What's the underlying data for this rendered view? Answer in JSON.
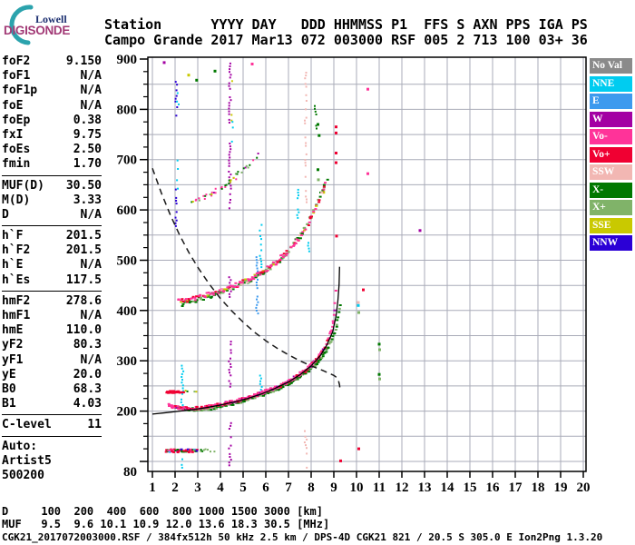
{
  "logo": {
    "top": "Lowell",
    "bottom": "DIGISONDE",
    "arc_color": "#2ba3ad"
  },
  "header": {
    "line1": "Station      YYYY DAY   DDD HHMMSS P1  FFS S AXN PPS IGA PS",
    "line2": "Campo Grande 2017 Mar13 072 003000 RSF 005 2 713 100 03+ 36"
  },
  "params": {
    "rows": [
      {
        "label": "foF2",
        "value": "9.150"
      },
      {
        "label": "foF1",
        "value": "N/A"
      },
      {
        "label": "foF1p",
        "value": "N/A"
      },
      {
        "label": "foE",
        "value": "N/A"
      },
      {
        "label": "foEp",
        "value": "0.38"
      },
      {
        "label": "fxI",
        "value": "9.75"
      },
      {
        "label": "foEs",
        "value": "2.50"
      },
      {
        "label": "fmin",
        "value": "1.70",
        "sep_after": true
      },
      {
        "label": "MUF(D)",
        "value": "30.50"
      },
      {
        "label": "M(D)",
        "value": "3.33"
      },
      {
        "label": "D",
        "value": "N/A",
        "sep_after": true
      },
      {
        "label": "h`F",
        "value": "201.5"
      },
      {
        "label": "h`F2",
        "value": "201.5"
      },
      {
        "label": "h`E",
        "value": "N/A"
      },
      {
        "label": "h`Es",
        "value": "117.5",
        "sep_after": true
      },
      {
        "label": "hmF2",
        "value": "278.6"
      },
      {
        "label": "hmF1",
        "value": "N/A"
      },
      {
        "label": "hmE",
        "value": "110.0"
      },
      {
        "label": "yF2",
        "value": "80.3"
      },
      {
        "label": "yF1",
        "value": "N/A"
      },
      {
        "label": "yE",
        "value": "20.0"
      },
      {
        "label": "B0",
        "value": "68.3"
      },
      {
        "label": "B1",
        "value": "4.03",
        "sep_after": true
      },
      {
        "label": "C-level",
        "value": "11",
        "sep_after": true
      },
      {
        "label": "Auto:",
        "value": ""
      },
      {
        "label": "Artist5",
        "value": ""
      },
      {
        "label": "500200",
        "value": ""
      }
    ]
  },
  "legend": [
    {
      "label": "No Val",
      "key": "NoVal"
    },
    {
      "label": "NNE",
      "key": "NNE"
    },
    {
      "label": "E",
      "key": "E"
    },
    {
      "label": "W",
      "key": "W"
    },
    {
      "label": "Vo-",
      "key": "Vo-"
    },
    {
      "label": "Vo+",
      "key": "Vo+"
    },
    {
      "label": "SSW",
      "key": "SSW"
    },
    {
      "label": "X-",
      "key": "X-"
    },
    {
      "label": "X+",
      "key": "X+"
    },
    {
      "label": "SSE",
      "key": "SSE"
    },
    {
      "label": "NNW",
      "key": "NNW"
    }
  ],
  "footer": {
    "d_label": "D",
    "d_values": [
      "100",
      "200",
      "400",
      "600",
      "800",
      "1000",
      "1500",
      "3000"
    ],
    "d_unit": "[km]",
    "muf_label": "MUF",
    "muf_values": [
      "9.5",
      "9.6",
      "10.1",
      "10.9",
      "12.0",
      "13.6",
      "18.3",
      "30.5"
    ],
    "muf_unit": "[MHz]",
    "status": "CGK21_2017072003000.RSF / 384fx512h 50 kHz 2.5 km / DPS-4D CGK21 821 / 20.5 S 305.0 E Ion2Png 1.3.20"
  },
  "chart_data": {
    "type": "scatter",
    "xlabel": "[MHz]",
    "ylabel": "[km]",
    "xlim": [
      1,
      20
    ],
    "ylim": [
      80,
      900
    ],
    "grid": true,
    "grid_color": "#A9ABB8",
    "palette": {
      "NoVal": "#8A8A8A",
      "NNE": "#00CCF0",
      "E": "#3D9AEE",
      "W": "#A300A3",
      "Vo-": "#FF3399",
      "Vo+": "#F00032",
      "SSW": "#F2B7B3",
      "X-": "#007800",
      "X+": "#80B369",
      "SSE": "#C9C900",
      "NNW": "#2B00D6"
    },
    "axes": {
      "x_ticks": [
        1,
        2,
        3,
        4,
        5,
        6,
        7,
        8,
        9,
        10,
        11,
        12,
        13,
        14,
        15,
        16,
        17,
        18,
        19,
        20
      ],
      "y_ticks": [
        {
          "v": 900,
          "label": "900"
        },
        {
          "v": 800,
          "label": "800"
        },
        {
          "v": 700,
          "label": "700"
        },
        {
          "v": 600,
          "label": "600"
        },
        {
          "v": 500,
          "label": "500"
        },
        {
          "v": 400,
          "label": "400"
        },
        {
          "v": 300,
          "label": "300"
        },
        {
          "v": 200,
          "label": "200"
        },
        {
          "v": 80,
          "label": "80"
        }
      ],
      "y_minor_step": 25,
      "y_grid_step": 50
    },
    "series": [
      {
        "name": "trace-f2-x-hop2",
        "df": 0.05,
        "dot": [
          3,
          2
        ],
        "jit": [
          1,
          2.4
        ],
        "prob": 0.85,
        "w": {
          "X-": 5,
          "X+": 3
        },
        "points": [
          [
            2.3,
            413
          ],
          [
            2.8,
            419
          ],
          [
            3.3,
            426
          ],
          [
            3.8,
            433
          ],
          [
            4.3,
            441
          ],
          [
            4.8,
            450
          ],
          [
            5.3,
            461
          ],
          [
            5.8,
            474
          ],
          [
            6.3,
            489
          ],
          [
            6.8,
            508
          ],
          [
            7.2,
            528
          ],
          [
            7.6,
            553
          ],
          [
            7.9,
            577
          ],
          [
            8.2,
            606
          ],
          [
            8.45,
            635
          ],
          [
            8.6,
            652
          ],
          [
            8.75,
            668
          ]
        ]
      },
      {
        "name": "trace-f2-o-hop2",
        "df": 0.045,
        "dot": [
          3,
          2
        ],
        "jit": [
          1,
          2.4
        ],
        "prob": 0.9,
        "w": {
          "Vo-": 6,
          "Vo+": 2,
          "SSW": 1,
          "SSE": 1
        },
        "points": [
          [
            2.15,
            418
          ],
          [
            2.6,
            422
          ],
          [
            3.1,
            427
          ],
          [
            3.6,
            433
          ],
          [
            4.1,
            440
          ],
          [
            4.6,
            448
          ],
          [
            5.1,
            458
          ],
          [
            5.6,
            470
          ],
          [
            6.1,
            484
          ],
          [
            6.5,
            497
          ],
          [
            6.9,
            514
          ],
          [
            7.3,
            534
          ],
          [
            7.7,
            559
          ],
          [
            8.0,
            584
          ],
          [
            8.3,
            614
          ],
          [
            8.5,
            638
          ],
          [
            8.65,
            655
          ]
        ]
      },
      {
        "name": "trace-f2-hop3",
        "df": 0.04,
        "dot": [
          2,
          2
        ],
        "jit": [
          1.2,
          2.6
        ],
        "prob": 0.6,
        "w": {
          "Vo-": 4,
          "X-": 3,
          "X+": 2,
          "SSE": 1,
          "W": 1
        },
        "points": [
          [
            2.7,
            612
          ],
          [
            3.1,
            621
          ],
          [
            3.5,
            630
          ],
          [
            3.9,
            641
          ],
          [
            4.3,
            653
          ],
          [
            4.7,
            667
          ],
          [
            5.1,
            683
          ],
          [
            5.4,
            697
          ],
          [
            5.65,
            710
          ]
        ]
      },
      {
        "name": "trace-f2-x-hop1",
        "df": 0.033,
        "dot": [
          3,
          2
        ],
        "jit": [
          0.8,
          1.6
        ],
        "w": {
          "X-": 5,
          "X+": 3
        },
        "points": [
          [
            2.05,
            207
          ],
          [
            2.5,
            204
          ],
          [
            3.0,
            203
          ],
          [
            3.5,
            205
          ],
          [
            4.0,
            209
          ],
          [
            4.5,
            214
          ],
          [
            5.0,
            220
          ],
          [
            5.5,
            227
          ],
          [
            6.0,
            235
          ],
          [
            6.5,
            244
          ],
          [
            7.0,
            255
          ],
          [
            7.4,
            265
          ],
          [
            7.8,
            278
          ],
          [
            8.2,
            293
          ],
          [
            8.5,
            309
          ],
          [
            8.8,
            330
          ],
          [
            9.0,
            350
          ],
          [
            9.1,
            365
          ],
          [
            9.2,
            385
          ],
          [
            9.3,
            408
          ],
          [
            9.34,
            420
          ]
        ]
      },
      {
        "name": "trace-f2-o-hop1",
        "df": 0.03,
        "dot": [
          3,
          2
        ],
        "jit": [
          0.8,
          1.7
        ],
        "w": {
          "Vo-": 7,
          "Vo+": 3,
          "W": 1
        },
        "points": [
          [
            1.72,
            212
          ],
          [
            1.85,
            209
          ],
          [
            2.0,
            208
          ],
          [
            2.3,
            206
          ],
          [
            2.7,
            205
          ],
          [
            3.0,
            206
          ],
          [
            3.5,
            209
          ],
          [
            4.0,
            213
          ],
          [
            4.5,
            218
          ],
          [
            5.0,
            224
          ],
          [
            5.5,
            231
          ],
          [
            6.0,
            239
          ],
          [
            6.5,
            248
          ],
          [
            7.0,
            259
          ],
          [
            7.4,
            270
          ],
          [
            7.8,
            283
          ],
          [
            8.1,
            296
          ],
          [
            8.4,
            312
          ],
          [
            8.6,
            327
          ],
          [
            8.8,
            348
          ],
          [
            8.95,
            372
          ],
          [
            9.03,
            395
          ],
          [
            9.08,
            420
          ],
          [
            9.1,
            442
          ],
          [
            9.11,
            455
          ]
        ]
      },
      {
        "name": "trace-es",
        "df": 0.028,
        "dot": [
          3,
          2
        ],
        "jit": [
          0.8,
          1.8
        ],
        "w": {
          "Vo+": 5,
          "Vo-": 2,
          "X-": 2,
          "X+": 2,
          "NNW": 1,
          "E": 1
        },
        "points": [
          [
            1.6,
            121
          ],
          [
            3.0,
            121
          ]
        ]
      },
      {
        "name": "trace-es-tail",
        "df": 0.06,
        "dot": [
          2,
          2
        ],
        "jit": [
          1,
          1.5
        ],
        "prob": 0.55,
        "w": {
          "X+": 2,
          "X-": 1,
          "SSE": 1
        },
        "points": [
          [
            3.0,
            121
          ],
          [
            3.9,
            122
          ]
        ]
      },
      {
        "name": "trace-240km-segment",
        "df": 0.03,
        "dot": [
          3,
          2
        ],
        "jit": [
          0.6,
          1.2
        ],
        "w": {
          "Vo+": 1
        },
        "points": [
          [
            1.62,
            238
          ],
          [
            2.38,
            238
          ]
        ]
      },
      {
        "name": "trace-240km-tail",
        "df": 0.055,
        "dot": [
          2,
          2
        ],
        "jit": [
          1,
          1.5
        ],
        "prob": 0.6,
        "w": {
          "X+": 2,
          "SSE": 2,
          "X-": 1,
          "NoVal": 1
        },
        "points": [
          [
            2.4,
            239
          ],
          [
            3.1,
            240
          ]
        ]
      }
    ],
    "noise_columns": [
      {
        "f": 4.42,
        "key": "W",
        "prob": 0.7,
        "segs": [
          [
            84,
            178
          ],
          [
            250,
            340
          ],
          [
            418,
            468
          ],
          [
            600,
            745
          ],
          [
            770,
            893
          ]
        ]
      },
      {
        "f": 4.49,
        "key": "SSE",
        "prob": 0.35,
        "segs": [
          [
            778,
            858
          ]
        ]
      },
      {
        "f": 4.55,
        "key": "NNE",
        "prob": 0.4,
        "segs": [
          [
            735,
            788
          ]
        ]
      },
      {
        "f": 2.32,
        "key": "NNE",
        "prob": 0.75,
        "segs": [
          [
            212,
            292
          ],
          [
            82,
            106
          ]
        ]
      },
      {
        "f": 5.62,
        "key": "E",
        "prob": 0.85,
        "segs": [
          [
            392,
            508
          ]
        ]
      },
      {
        "f": 5.78,
        "key": "NNE",
        "prob": 0.6,
        "segs": [
          [
            224,
            278
          ],
          [
            488,
            572
          ]
        ]
      },
      {
        "f": 7.42,
        "key": "NNE",
        "prob": 0.55,
        "segs": [
          [
            572,
            642
          ]
        ]
      },
      {
        "f": 7.9,
        "key": "NNE",
        "prob": 0.5,
        "segs": [
          [
            517,
            553
          ]
        ]
      },
      {
        "f": 7.76,
        "key": "SSW",
        "prob": 0.5,
        "segs": [
          [
            84,
            162
          ],
          [
            610,
            886
          ]
        ]
      },
      {
        "f": 2.06,
        "key": "NNW",
        "prob": 0.55,
        "segs": [
          [
            566,
            648
          ],
          [
            786,
            862
          ]
        ]
      },
      {
        "f": 2.12,
        "key": "NNE",
        "prob": 0.4,
        "segs": [
          [
            640,
            700
          ],
          [
            800,
            834
          ]
        ]
      },
      {
        "f": 8.2,
        "key": "X-",
        "prob": 0.55,
        "segs": [
          [
            762,
            814
          ]
        ]
      }
    ],
    "dots": [
      [
        9.1,
        765,
        "Vo+"
      ],
      [
        9.1,
        753,
        "Vo+"
      ],
      [
        9.1,
        713,
        "Vo+"
      ],
      [
        9.1,
        694,
        "Vo+"
      ],
      [
        9.12,
        548,
        "Vo+"
      ],
      [
        10.5,
        672,
        "Vo-"
      ],
      [
        10.3,
        441,
        "Vo+"
      ],
      [
        10.08,
        416,
        "SSW"
      ],
      [
        10.08,
        410,
        "NNE"
      ],
      [
        10.1,
        396,
        "X+"
      ],
      [
        11.0,
        333,
        "X-"
      ],
      [
        11.02,
        322,
        "X+"
      ],
      [
        11.0,
        273,
        "X-"
      ],
      [
        11.02,
        264,
        "X+"
      ],
      [
        12.8,
        559,
        "W"
      ],
      [
        10.1,
        125,
        "Vo+"
      ],
      [
        9.3,
        101,
        "Vo+"
      ],
      [
        10.5,
        840,
        "Vo-"
      ],
      [
        1.52,
        893,
        "W"
      ],
      [
        8.3,
        770,
        "X-"
      ],
      [
        8.35,
        748,
        "X-"
      ],
      [
        8.3,
        680,
        "X-"
      ],
      [
        8.32,
        660,
        "X+"
      ],
      [
        8.55,
        635,
        "SSE"
      ],
      [
        2.6,
        868,
        "SSE"
      ],
      [
        2.95,
        858,
        "X-"
      ],
      [
        5.4,
        890,
        "Vo-"
      ],
      [
        3.76,
        876,
        "X-"
      ]
    ],
    "overlays": {
      "profile": {
        "points": [
          [
            1.0,
            194
          ],
          [
            1.6,
            197
          ],
          [
            2.2,
            200
          ],
          [
            2.8,
            203
          ],
          [
            3.4,
            207
          ],
          [
            4.0,
            212
          ],
          [
            4.6,
            218
          ],
          [
            5.2,
            225
          ],
          [
            5.8,
            234
          ],
          [
            6.4,
            245
          ],
          [
            7.0,
            258
          ],
          [
            7.5,
            272
          ],
          [
            8.0,
            290
          ],
          [
            8.4,
            310
          ],
          [
            8.7,
            332
          ],
          [
            8.95,
            358
          ],
          [
            9.1,
            390
          ],
          [
            9.18,
            420
          ],
          [
            9.23,
            452
          ],
          [
            9.25,
            487
          ]
        ]
      },
      "muf": {
        "points": [
          [
            1.0,
            683
          ],
          [
            1.4,
            633
          ],
          [
            1.8,
            589
          ],
          [
            2.2,
            550
          ],
          [
            2.6,
            516
          ],
          [
            3.0,
            486
          ],
          [
            3.5,
            453
          ],
          [
            4.0,
            424
          ],
          [
            4.5,
            399
          ],
          [
            5.0,
            377
          ],
          [
            5.5,
            357
          ],
          [
            6.0,
            340
          ],
          [
            6.5,
            325
          ],
          [
            7.0,
            312
          ],
          [
            7.5,
            300
          ],
          [
            8.0,
            290
          ],
          [
            8.5,
            281
          ],
          [
            8.8,
            275
          ],
          [
            9.0,
            271
          ],
          [
            9.12,
            267
          ],
          [
            9.2,
            261
          ],
          [
            9.25,
            252
          ],
          [
            9.27,
            243
          ]
        ]
      }
    }
  }
}
